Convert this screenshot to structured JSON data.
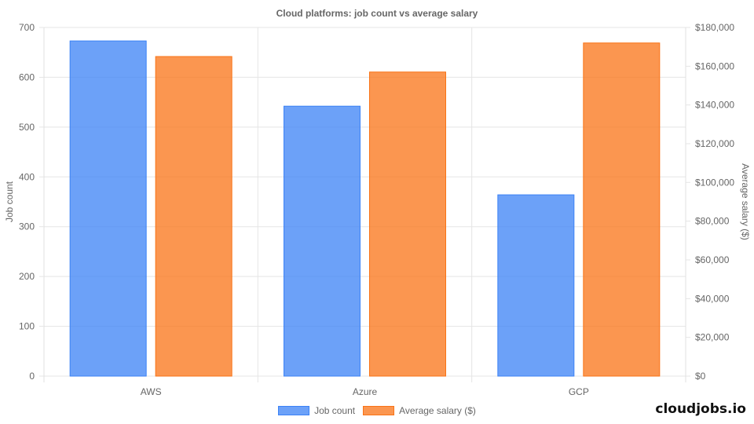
{
  "chart_data": {
    "type": "bar",
    "title": "Cloud platforms: job count vs average salary",
    "categories": [
      "AWS",
      "Azure",
      "GCP"
    ],
    "series": [
      {
        "name": "Job count",
        "axis": "left",
        "color": "#3b82f6",
        "values": [
          673,
          542,
          364
        ]
      },
      {
        "name": "Average salary ($)",
        "axis": "right",
        "color": "#f97316",
        "values": [
          165000,
          157000,
          172000
        ]
      }
    ],
    "xlabel": "",
    "ylabel": "Job count",
    "ylabel_right": "Average salary ($)",
    "ylim": [
      0,
      700
    ],
    "ylim_right": [
      0,
      180000
    ],
    "yticks": [
      0,
      100,
      200,
      300,
      400,
      500,
      600,
      700
    ],
    "yticks_right": [
      "$0",
      "$20,000",
      "$40,000",
      "$60,000",
      "$80,000",
      "$100,000",
      "$120,000",
      "$140,000",
      "$160,000",
      "$180,000"
    ],
    "grid": true,
    "legend_position": "bottom"
  },
  "title": "Cloud platforms: job count vs average salary",
  "axes": {
    "left_title": "Job count",
    "right_title": "Average salary ($)",
    "left_ticks": [
      "0",
      "100",
      "200",
      "300",
      "400",
      "500",
      "600",
      "700"
    ],
    "right_ticks": [
      "$0",
      "$20,000",
      "$40,000",
      "$60,000",
      "$80,000",
      "$100,000",
      "$120,000",
      "$140,000",
      "$160,000",
      "$180,000"
    ],
    "categories": [
      "AWS",
      "Azure",
      "GCP"
    ]
  },
  "legend": {
    "items": [
      {
        "label": "Job count",
        "color": "#3b82f6"
      },
      {
        "label": "Average salary ($)",
        "color": "#f97316"
      }
    ]
  },
  "brand": "cloudjobs.io"
}
